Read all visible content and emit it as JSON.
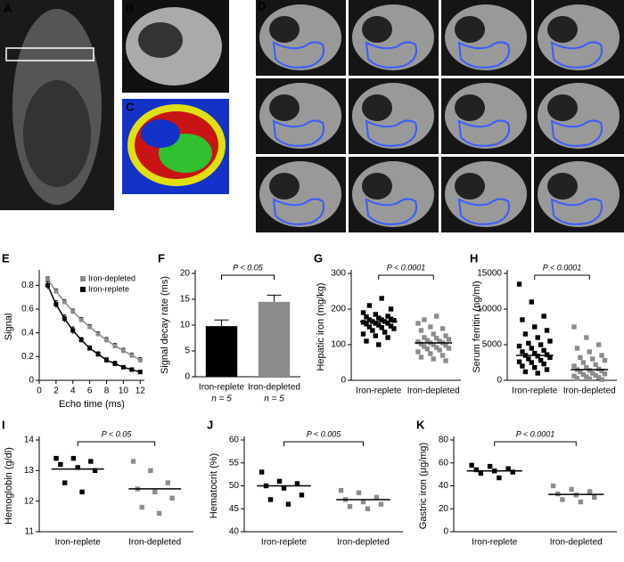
{
  "image_panels": [
    "A",
    "B",
    "C",
    "D"
  ],
  "chart_data": [
    {
      "type": "line",
      "panel": "E",
      "xlabel": "Echo time (ms)",
      "ylabel": "Signal",
      "x": [
        1,
        2,
        3,
        4,
        5,
        6,
        7,
        8,
        9,
        10,
        11,
        12
      ],
      "xlim": [
        0,
        12.5
      ],
      "xticks": [
        0,
        2,
        4,
        6,
        8,
        10,
        12
      ],
      "ylim": [
        0,
        0.9
      ],
      "yticks": [
        0,
        0.2,
        0.4,
        0.6,
        0.8
      ],
      "legend": "upper right",
      "series": [
        {
          "name": "Iron-depleted",
          "color": "#8c8c8c",
          "values": [
            0.85,
            0.75,
            0.66,
            0.58,
            0.51,
            0.45,
            0.39,
            0.34,
            0.29,
            0.25,
            0.21,
            0.17
          ],
          "errors": [
            0.02,
            0.02,
            0.02,
            0.02,
            0.02,
            0.02,
            0.02,
            0.02,
            0.02,
            0.02,
            0.02,
            0.02
          ]
        },
        {
          "name": "Iron-replete",
          "color": "#000000",
          "values": [
            0.8,
            0.64,
            0.52,
            0.42,
            0.34,
            0.27,
            0.22,
            0.17,
            0.14,
            0.11,
            0.09,
            0.07
          ],
          "errors": [
            0.03,
            0.03,
            0.03,
            0.03,
            0.02,
            0.02,
            0.02,
            0.02,
            0.02,
            0.01,
            0.01,
            0.01
          ]
        }
      ]
    },
    {
      "type": "bar",
      "panel": "F",
      "ylabel": "Signal decay rate (ms)",
      "categories": [
        "Iron-replete",
        "Iron-depleted"
      ],
      "sample_sizes": [
        "n = 5",
        "n = 5"
      ],
      "values": [
        9.8,
        14.5
      ],
      "errors": [
        1.2,
        1.3
      ],
      "colors": [
        "#000000",
        "#8c8c8c"
      ],
      "ylim": [
        0,
        20
      ],
      "yticks": [
        0,
        5,
        10,
        15,
        20
      ],
      "annotation": "P < 0.05"
    },
    {
      "type": "strip",
      "panel": "G",
      "ylabel": "Hepatic iron (mg/kg)",
      "categories": [
        "Iron-replete",
        "Iron-depleted"
      ],
      "colors": [
        "#000000",
        "#8c8c8c"
      ],
      "points": [
        [
          190,
          185,
          180,
          178,
          175,
          172,
          170,
          170,
          168,
          165,
          165,
          163,
          160,
          160,
          158,
          155,
          152,
          150,
          148,
          145,
          140,
          135,
          130,
          125,
          120,
          110,
          100,
          200,
          210,
          230
        ],
        [
          160,
          150,
          145,
          140,
          130,
          125,
          120,
          118,
          115,
          112,
          110,
          108,
          105,
          105,
          102,
          100,
          98,
          95,
          92,
          90,
          88,
          85,
          80,
          75,
          70,
          65,
          60,
          55,
          170,
          180
        ]
      ],
      "means": [
        165,
        105
      ],
      "ylim": [
        0,
        300
      ],
      "yticks": [
        0,
        100,
        200,
        300
      ],
      "annotation": "P < 0.0001"
    },
    {
      "type": "strip",
      "panel": "H",
      "ylabel": "Serum ferritin (ng/ml)",
      "categories": [
        "Iron-replete",
        "Iron-depleted"
      ],
      "colors": [
        "#000000",
        "#8c8c8c"
      ],
      "points": [
        [
          13500,
          11000,
          9000,
          8500,
          7500,
          7000,
          6500,
          6000,
          5500,
          5200,
          5000,
          4800,
          4500,
          4200,
          4000,
          3800,
          3600,
          3500,
          3400,
          3200,
          3000,
          2800,
          2600,
          2500,
          2300,
          2000,
          1800,
          1500,
          1200,
          1000
        ],
        [
          7500,
          6000,
          5000,
          4500,
          4000,
          3500,
          3200,
          3000,
          2800,
          2500,
          2200,
          2000,
          1800,
          1600,
          1500,
          1400,
          1300,
          1200,
          1000,
          900,
          800,
          700,
          600,
          500,
          400,
          300,
          200,
          100
        ]
      ],
      "means": [
        3500,
        1500
      ],
      "ylim": [
        0,
        15000
      ],
      "yticks": [
        0,
        5000,
        10000,
        15000
      ],
      "annotation": "P < 0.0001"
    },
    {
      "type": "strip",
      "panel": "I",
      "ylabel": "Hemoglobin (g/dl)",
      "categories": [
        "Iron-replete",
        "Iron-depleted"
      ],
      "colors": [
        "#000000",
        "#8c8c8c"
      ],
      "points": [
        [
          13.4,
          13.4,
          13.3,
          13.2,
          13.1,
          13.0,
          12.6,
          12.3
        ],
        [
          13.3,
          13.0,
          12.6,
          12.4,
          12.3,
          12.1,
          11.8,
          11.6
        ]
      ],
      "means": [
        13.05,
        12.4
      ],
      "ylim": [
        11,
        14
      ],
      "yticks": [
        11,
        12,
        13,
        14
      ],
      "annotation": "P < 0.05"
    },
    {
      "type": "strip",
      "panel": "J",
      "ylabel": "Hematocrit (%)",
      "categories": [
        "Iron-replete",
        "Iron-depleted"
      ],
      "colors": [
        "#000000",
        "#8c8c8c"
      ],
      "points": [
        [
          53,
          51,
          50.5,
          50,
          49.5,
          48,
          47,
          46
        ],
        [
          49,
          48.5,
          47.5,
          47,
          46.5,
          46,
          45.5,
          45
        ]
      ],
      "means": [
        50,
        47
      ],
      "ylim": [
        40,
        60
      ],
      "yticks": [
        40,
        45,
        50,
        55,
        60
      ],
      "annotation": "P < 0.005"
    },
    {
      "type": "strip",
      "panel": "K",
      "ylabel": "Gastric iron (µg/mg)",
      "categories": [
        "Iron-replete",
        "Iron-depleted"
      ],
      "colors": [
        "#000000",
        "#8c8c8c"
      ],
      "points": [
        [
          58,
          57,
          55,
          54,
          53,
          52,
          51,
          47
        ],
        [
          40,
          37,
          35,
          33,
          32,
          30,
          28,
          26
        ]
      ],
      "means": [
        53,
        32.5
      ],
      "ylim": [
        0,
        80
      ],
      "yticks": [
        0,
        20,
        40,
        60,
        80
      ],
      "annotation": "P < 0.0001"
    }
  ]
}
